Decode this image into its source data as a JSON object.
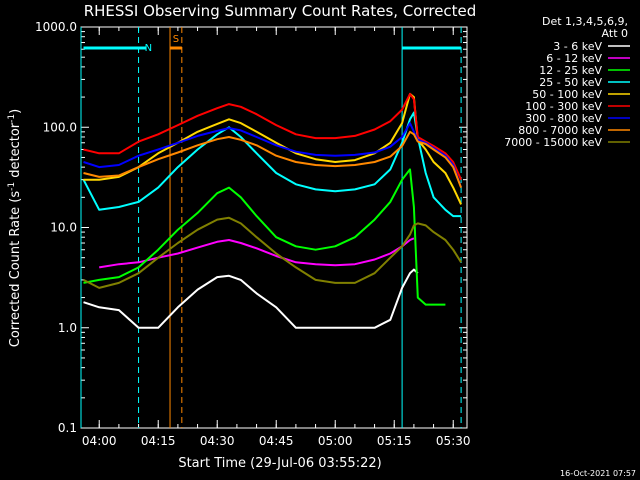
{
  "chart_data": {
    "type": "line",
    "title": "RHESSI Observing Summary Count Rates, Corrected",
    "xlabel": "Start Time (29-Jul-06 03:55:22)",
    "ylabel_prefix": "Corrected Count Rate (s",
    "ylabel_sup1": "-1",
    "ylabel_mid": " detector",
    "ylabel_sup2": "-1",
    "ylabel_suffix": ")",
    "date_stamp": "16-Oct-2021 07:57",
    "y_scale": "log",
    "ylim": [
      0.1,
      1000
    ],
    "xlim": [
      "03:55:22",
      "05:33:30"
    ],
    "x_ticks": [
      "04:00",
      "04:15",
      "04:30",
      "04:45",
      "05:00",
      "05:15",
      "05:30"
    ],
    "y_ticks": [
      "0.1",
      "1.0",
      "10.0",
      "100.0",
      "1000.0"
    ],
    "legend_header": [
      "Det 1,3,4,5,6,9,",
      "Att 0"
    ],
    "legend_placement": "right",
    "flags": [
      {
        "label": "N",
        "color": "#00ffff"
      },
      {
        "label": "S",
        "color": "#ff8800"
      }
    ],
    "x_time_points": [
      "03:56",
      "04:00",
      "04:05",
      "04:10",
      "04:15",
      "04:20",
      "04:25",
      "04:30",
      "04:33",
      "04:36",
      "04:40",
      "04:45",
      "04:50",
      "04:55",
      "05:00",
      "05:05",
      "05:10",
      "05:14",
      "05:17",
      "05:19",
      "05:20",
      "05:21",
      "05:23",
      "05:25",
      "05:28",
      "05:30",
      "05:32",
      "05:33"
    ],
    "series": [
      {
        "name": "3 - 6 keV",
        "color": "#ffffff",
        "values": [
          1.8,
          1.6,
          1.5,
          1.0,
          1.0,
          1.6,
          2.4,
          3.2,
          3.3,
          3.0,
          2.2,
          1.6,
          1.0,
          1.0,
          1.0,
          1.0,
          1.0,
          1.2,
          2.5,
          3.5,
          3.8,
          3.5,
          null,
          null,
          null,
          null,
          null,
          null
        ]
      },
      {
        "name": "6 - 12 keV",
        "color": "#ff00ff",
        "values": [
          null,
          4.0,
          4.3,
          4.5,
          5.0,
          5.5,
          6.3,
          7.2,
          7.5,
          7.0,
          6.2,
          5.2,
          4.5,
          4.3,
          4.2,
          4.3,
          4.8,
          5.5,
          6.5,
          7.5,
          7.8,
          null,
          null,
          null,
          null,
          null,
          null,
          null
        ]
      },
      {
        "name": "12 - 25 keV",
        "color": "#00ff00",
        "values": [
          2.8,
          3.0,
          3.2,
          4.0,
          6.0,
          9.5,
          14.0,
          22.0,
          25.0,
          20.0,
          13.0,
          8.0,
          6.5,
          6.0,
          6.5,
          8.0,
          12.0,
          18.0,
          30.0,
          38.0,
          16.0,
          2.0,
          1.7,
          1.7,
          1.7,
          null,
          null,
          null
        ]
      },
      {
        "name": "25 - 50 keV",
        "color": "#00ffff",
        "values": [
          30,
          15,
          16,
          18,
          25,
          40,
          60,
          85,
          100,
          80,
          55,
          35,
          27,
          24,
          23,
          24,
          27,
          38,
          70,
          120,
          140,
          80,
          35,
          20,
          15,
          13,
          13,
          null
        ]
      },
      {
        "name": "50 - 100 keV",
        "color": "#ffd700",
        "values": [
          30,
          30,
          32,
          40,
          55,
          70,
          90,
          108,
          120,
          110,
          90,
          70,
          55,
          48,
          45,
          47,
          55,
          70,
          110,
          215,
          200,
          75,
          60,
          45,
          35,
          25,
          17,
          null
        ]
      },
      {
        "name": "100 - 300 keV",
        "color": "#ff0000",
        "values": [
          60,
          55,
          55,
          72,
          85,
          105,
          130,
          155,
          170,
          160,
          135,
          105,
          85,
          78,
          78,
          82,
          95,
          115,
          150,
          215,
          190,
          80,
          72,
          65,
          55,
          45,
          30,
          null
        ]
      },
      {
        "name": "300 - 800 keV",
        "color": "#0000ff",
        "values": [
          45,
          40,
          42,
          52,
          60,
          70,
          82,
          92,
          98,
          93,
          80,
          66,
          57,
          53,
          52,
          53,
          56,
          64,
          80,
          110,
          90,
          75,
          70,
          62,
          52,
          42,
          25,
          null
        ]
      },
      {
        "name": "800 - 7000 keV",
        "color": "#ff8800",
        "values": [
          35,
          32,
          33,
          40,
          48,
          56,
          66,
          76,
          80,
          75,
          66,
          52,
          45,
          42,
          41,
          42,
          45,
          51,
          65,
          90,
          85,
          72,
          68,
          60,
          50,
          40,
          25,
          null
        ]
      },
      {
        "name": "7000 - 15000 keV",
        "color": "#808000",
        "values": [
          3.0,
          2.5,
          2.8,
          3.5,
          5.0,
          7.0,
          9.5,
          12.0,
          12.5,
          11.0,
          8.0,
          5.5,
          4.0,
          3.0,
          2.8,
          2.8,
          3.5,
          5.0,
          6.5,
          8.5,
          10.5,
          11.0,
          10.5,
          9.0,
          7.5,
          6.0,
          4.5,
          null
        ]
      }
    ],
    "vertical_markers": [
      {
        "time": "03:55:22",
        "style": "solid",
        "color": "#00ffff"
      },
      {
        "time": "04:10",
        "style": "dashed",
        "color": "#00ffff"
      },
      {
        "time": "04:18",
        "style": "solid",
        "color": "#ff8800"
      },
      {
        "time": "04:21",
        "style": "dashed",
        "color": "#ff8800"
      },
      {
        "time": "05:17",
        "style": "solid",
        "color": "#00ffff"
      },
      {
        "time": "05:32",
        "style": "dashed",
        "color": "#00ffff"
      }
    ],
    "flag_bars": [
      {
        "label": "N",
        "start": "03:56",
        "end": "04:12",
        "color": "#00ffff"
      },
      {
        "label": "S",
        "start": "04:18",
        "end": "04:21",
        "color": "#ff8800"
      },
      {
        "label": "",
        "start": "05:17",
        "end": "05:32",
        "color": "#00ffff"
      }
    ]
  }
}
